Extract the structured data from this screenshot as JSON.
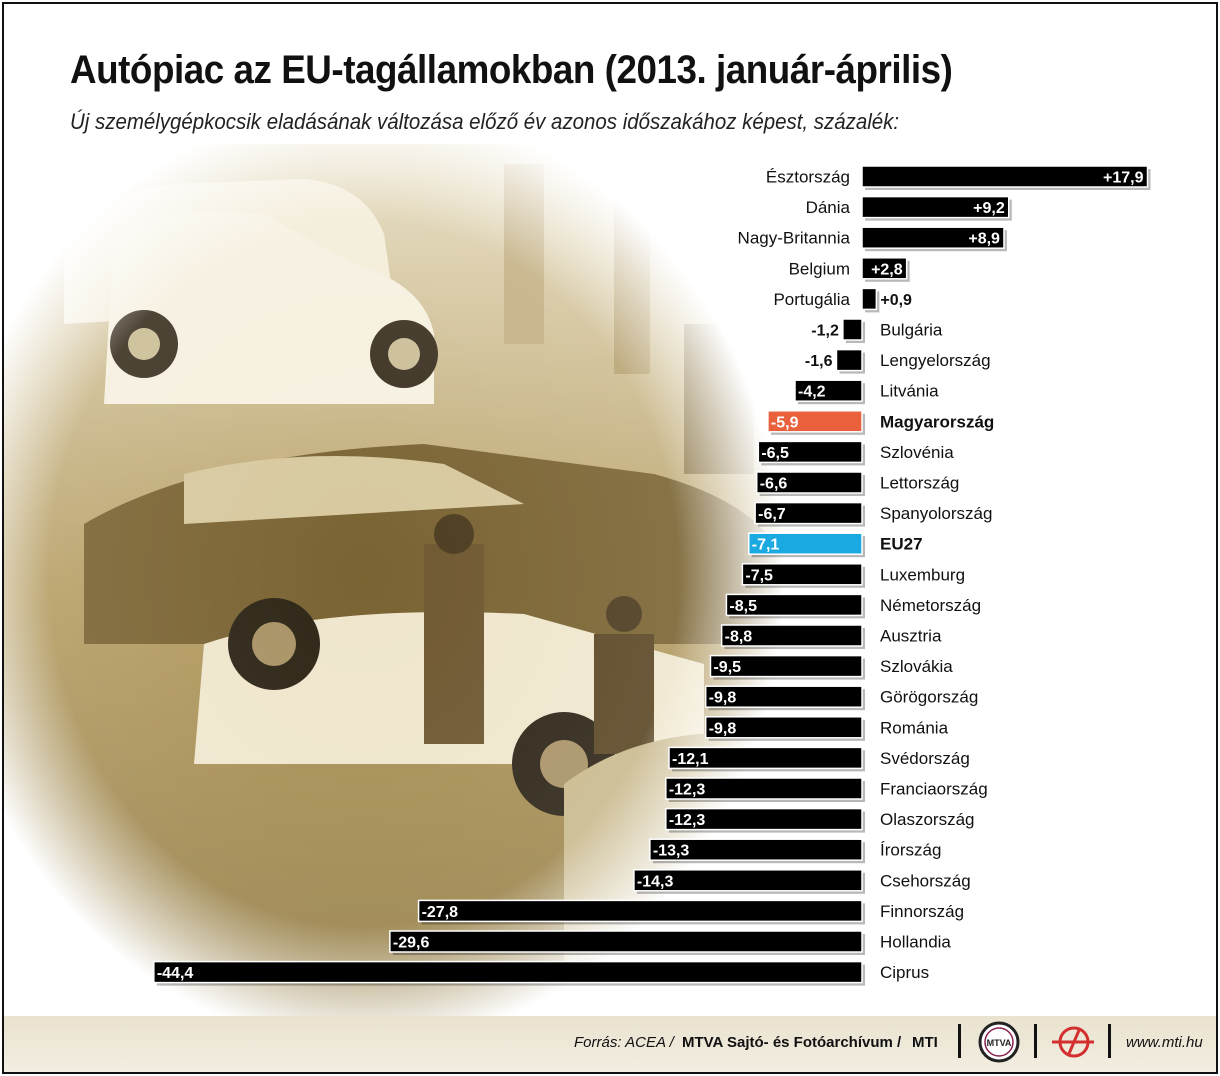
{
  "title": "Autópiac az EU-tagállamokban (2013. január-április)",
  "subtitle": "Új személygépkocsik eladásának változása előző év azonos időszakához képest, százalék:",
  "footer": {
    "source_label": "Forrás: ACEA /",
    "source_archive": "MTVA Sajtó- és Fotóarchívum /",
    "source_mti": "MTI",
    "logo_text": "MTVA",
    "website": "www.mti.hu"
  },
  "colors": {
    "bar_default": "#000000",
    "bar_hungary": "#e8603c",
    "bar_eu27": "#1ba9e1",
    "photo_tint": "#b8a068"
  },
  "chart_data": {
    "type": "bar",
    "orientation": "horizontal",
    "title": "Autópiac az EU-tagállamokban (2013. január-április)",
    "subtitle": "Új személygépkocsik eladásának változása előző év azonos időszakához képest, százalék:",
    "xlabel": "",
    "ylabel": "",
    "grid": false,
    "legend": "none",
    "xlim": [
      -44.4,
      17.9
    ],
    "categories": [
      "Észtország",
      "Dánia",
      "Nagy-Britannia",
      "Belgium",
      "Portugália",
      "Bulgária",
      "Lengyelország",
      "Litvánia",
      "Magyarország",
      "Szlovénia",
      "Lettország",
      "Spanyolország",
      "EU27",
      "Luxemburg",
      "Németország",
      "Ausztria",
      "Szlovákia",
      "Görögország",
      "Románia",
      "Svédország",
      "Franciaország",
      "Olaszország",
      "Írország",
      "Csehország",
      "Finnország",
      "Hollandia",
      "Ciprus"
    ],
    "values": [
      17.9,
      9.2,
      8.9,
      2.8,
      0.9,
      -1.2,
      -1.6,
      -4.2,
      -5.9,
      -6.5,
      -6.6,
      -6.7,
      -7.1,
      -7.5,
      -8.5,
      -8.8,
      -9.5,
      -9.8,
      -9.8,
      -12.1,
      -12.3,
      -12.3,
      -13.3,
      -14.3,
      -27.8,
      -29.6,
      -44.4
    ],
    "value_labels": [
      "+17,9",
      "+9,2",
      "+8,9",
      "+2,8",
      "+0,9",
      "-1,2",
      "-1,6",
      "-4,2",
      "-5,9",
      "-6,5",
      "-6,6",
      "-6,7",
      "-7,1",
      "-7,5",
      "-8,5",
      "-8,8",
      "-9,5",
      "-9,8",
      "-9,8",
      "-12,1",
      "-12,3",
      "-12,3",
      "-13,3",
      "-14,3",
      "-27,8",
      "-29,6",
      "-44,4"
    ],
    "highlight": {
      "Magyarország": "#e8603c",
      "EU27": "#1ba9e1"
    },
    "bold_labels": [
      "Magyarország",
      "EU27"
    ]
  }
}
